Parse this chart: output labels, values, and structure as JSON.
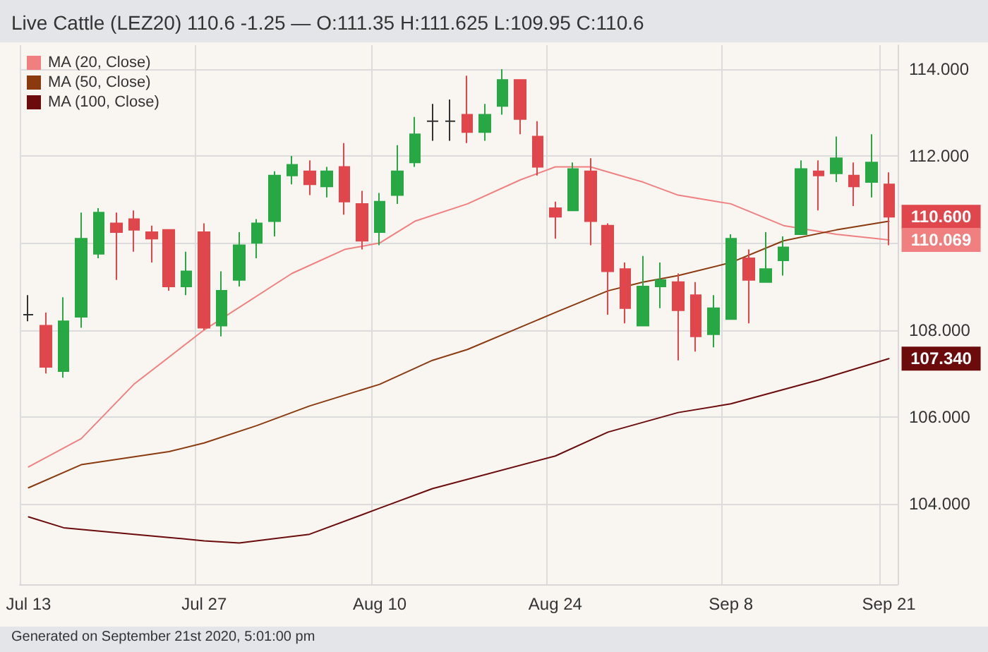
{
  "chart_data": {
    "type": "candlestick",
    "title": "Live Cattle (LEZ20) 110.6 -1.25 — O:111.35 H:111.625 L:109.95 C:110.6",
    "annotations": [
      "Generated on September 21st 2020, 5:01:00 pm"
    ],
    "categories": [
      "Jul 13",
      null,
      null,
      null,
      null,
      null,
      null,
      null,
      null,
      null,
      "Jul 27",
      null,
      null,
      null,
      null,
      null,
      null,
      null,
      null,
      null,
      "Aug 10",
      null,
      null,
      null,
      null,
      null,
      null,
      null,
      null,
      null,
      "Aug 24",
      null,
      null,
      null,
      null,
      null,
      null,
      null,
      null,
      null,
      "Sep 8",
      null,
      null,
      null,
      null,
      null,
      null,
      null,
      null,
      "Sep 21"
    ],
    "ohlc": [
      [
        108.35,
        108.8,
        108.2,
        108.35
      ],
      [
        108.1,
        108.4,
        107.0,
        107.15
      ],
      [
        107.05,
        108.75,
        106.9,
        108.2
      ],
      [
        108.3,
        110.7,
        108.05,
        110.1
      ],
      [
        109.75,
        110.8,
        109.65,
        110.7
      ],
      [
        110.45,
        110.7,
        109.15,
        110.25
      ],
      [
        110.55,
        110.75,
        109.8,
        110.3
      ],
      [
        110.25,
        110.4,
        109.55,
        110.1
      ],
      [
        110.3,
        110.3,
        108.9,
        109.0
      ],
      [
        109.0,
        109.8,
        108.8,
        109.35
      ],
      [
        110.25,
        110.45,
        108.0,
        108.05
      ],
      [
        108.1,
        109.35,
        107.85,
        108.9
      ],
      [
        109.15,
        110.25,
        109.0,
        109.95
      ],
      [
        110.0,
        110.55,
        109.65,
        110.45
      ],
      [
        110.5,
        111.65,
        110.15,
        111.55
      ],
      [
        111.55,
        112.0,
        111.35,
        111.8
      ],
      [
        111.65,
        111.9,
        111.1,
        111.35
      ],
      [
        111.3,
        111.75,
        111.05,
        111.65
      ],
      [
        111.75,
        112.3,
        110.65,
        110.95
      ],
      [
        110.9,
        111.2,
        109.85,
        110.05
      ],
      [
        110.25,
        111.15,
        109.95,
        110.95
      ],
      [
        111.1,
        112.25,
        110.9,
        111.65
      ],
      [
        111.85,
        112.9,
        111.75,
        112.5
      ],
      [
        112.8,
        113.2,
        112.35,
        112.8
      ],
      [
        112.8,
        113.3,
        112.35,
        112.8
      ],
      [
        112.95,
        113.85,
        112.3,
        112.55
      ],
      [
        112.55,
        113.2,
        112.35,
        112.95
      ],
      [
        113.15,
        114.0,
        112.95,
        113.75
      ],
      [
        113.75,
        113.75,
        112.5,
        112.85
      ],
      [
        112.45,
        112.8,
        111.55,
        111.75
      ],
      [
        110.8,
        110.95,
        110.1,
        110.6
      ],
      [
        110.75,
        111.85,
        110.75,
        111.7
      ],
      [
        111.65,
        111.95,
        109.95,
        110.5
      ],
      [
        110.4,
        110.45,
        108.35,
        109.35
      ],
      [
        109.4,
        109.55,
        108.15,
        108.5
      ],
      [
        108.1,
        109.7,
        108.1,
        109.0
      ],
      [
        109.0,
        109.55,
        108.5,
        109.15
      ],
      [
        109.1,
        109.3,
        107.3,
        108.45
      ],
      [
        108.8,
        109.1,
        107.5,
        107.85
      ],
      [
        107.9,
        108.8,
        107.6,
        108.5
      ],
      [
        108.25,
        110.2,
        108.25,
        110.1
      ],
      [
        109.65,
        109.85,
        108.15,
        109.15
      ],
      [
        109.1,
        110.25,
        109.1,
        109.4
      ],
      [
        109.6,
        110.15,
        109.25,
        109.9
      ],
      [
        110.2,
        111.9,
        110.2,
        111.7
      ],
      [
        111.65,
        111.9,
        110.75,
        111.55
      ],
      [
        111.6,
        112.45,
        111.4,
        111.95
      ],
      [
        111.55,
        111.85,
        110.85,
        111.3
      ],
      [
        111.4,
        112.5,
        111.05,
        111.85
      ],
      [
        111.35,
        111.625,
        109.95,
        110.6
      ]
    ],
    "colors": [
      "#333333",
      "#e0474c",
      "#28a745",
      "#28a745",
      "#28a745",
      "#e0474c",
      "#e0474c",
      "#e0474c",
      "#e0474c",
      "#28a745",
      "#e0474c",
      "#28a745",
      "#28a745",
      "#28a745",
      "#28a745",
      "#28a745",
      "#e0474c",
      "#28a745",
      "#e0474c",
      "#e0474c",
      "#28a745",
      "#28a745",
      "#28a745",
      "#333333",
      "#333333",
      "#e0474c",
      "#28a745",
      "#28a745",
      "#e0474c",
      "#e0474c",
      "#e0474c",
      "#28a745",
      "#e0474c",
      "#e0474c",
      "#e0474c",
      "#28a745",
      "#28a745",
      "#e0474c",
      "#e0474c",
      "#28a745",
      "#28a745",
      "#e0474c",
      "#28a745",
      "#28a745",
      "#28a745",
      "#e0474c",
      "#28a745",
      "#e0474c",
      "#28a745",
      "#e0474c"
    ],
    "value_labels": [
      null,
      null,
      null,
      null,
      null,
      null,
      null,
      null,
      null,
      null,
      null,
      null,
      null,
      null,
      null,
      null,
      null,
      null,
      null,
      null,
      null,
      null,
      null,
      null,
      null,
      null,
      null,
      null,
      null,
      null,
      null,
      null,
      null,
      null,
      null,
      null,
      null,
      null,
      null,
      null,
      null,
      null,
      null,
      null,
      null,
      null,
      null,
      null,
      null,
      "110.600"
    ],
    "series": [
      {
        "type": "line",
        "name": "MA (20, Close)",
        "color": "#f08080",
        "values": [
          104.85,
          null,
          null,
          105.5,
          null,
          null,
          106.75,
          null,
          null,
          null,
          108.0,
          null,
          null,
          null,
          null,
          109.3,
          null,
          null,
          109.85,
          null,
          110.0,
          null,
          110.5,
          null,
          null,
          110.9,
          null,
          null,
          111.45,
          null,
          111.75,
          null,
          111.75,
          null,
          null,
          111.4,
          null,
          111.1,
          null,
          null,
          110.9,
          null,
          null,
          110.4,
          null,
          null,
          110.2,
          null,
          null,
          110.069
        ],
        "value_labels": [
          null,
          null,
          null,
          null,
          null,
          null,
          null,
          null,
          null,
          null,
          null,
          null,
          null,
          null,
          null,
          null,
          null,
          null,
          null,
          null,
          null,
          null,
          null,
          null,
          null,
          null,
          null,
          null,
          null,
          null,
          null,
          null,
          null,
          null,
          null,
          null,
          null,
          null,
          null,
          null,
          null,
          null,
          null,
          null,
          null,
          null,
          null,
          null,
          null,
          "110.069"
        ]
      },
      {
        "type": "line",
        "name": "MA (50, Close)",
        "color": "#8b3a0f",
        "values": [
          104.37,
          null,
          null,
          104.9,
          null,
          null,
          null,
          null,
          105.2,
          null,
          105.4,
          null,
          null,
          105.8,
          null,
          null,
          106.25,
          null,
          null,
          null,
          106.75,
          null,
          null,
          107.3,
          null,
          107.55,
          null,
          null,
          null,
          null,
          108.4,
          null,
          null,
          108.9,
          null,
          109.1,
          null,
          109.25,
          null,
          null,
          109.55,
          null,
          null,
          110.05,
          null,
          null,
          110.3,
          null,
          null,
          110.5
        ]
      },
      {
        "type": "line",
        "name": "MA (100, Close)",
        "color": "#6b0b0b",
        "values": [
          103.7,
          null,
          103.45,
          null,
          null,
          null,
          103.3,
          null,
          null,
          null,
          103.15,
          null,
          103.1,
          null,
          null,
          null,
          103.3,
          null,
          null,
          null,
          103.9,
          null,
          null,
          104.35,
          null,
          null,
          null,
          null,
          null,
          null,
          105.1,
          null,
          null,
          105.65,
          null,
          null,
          null,
          106.1,
          null,
          null,
          106.3,
          null,
          null,
          null,
          null,
          106.85,
          null,
          null,
          null,
          107.34
        ],
        "value_labels": [
          null,
          null,
          null,
          null,
          null,
          null,
          null,
          null,
          null,
          null,
          null,
          null,
          null,
          null,
          null,
          null,
          null,
          null,
          null,
          null,
          null,
          null,
          null,
          null,
          null,
          null,
          null,
          null,
          null,
          null,
          null,
          null,
          null,
          null,
          null,
          null,
          null,
          null,
          null,
          null,
          null,
          null,
          null,
          null,
          null,
          null,
          null,
          null,
          null,
          "107.340"
        ]
      }
    ],
    "ylim": [
      102.15,
      114.55
    ],
    "yticks": [
      {
        "value": 104,
        "label": "104.000"
      },
      {
        "value": 106,
        "label": "106.000"
      },
      {
        "value": 108,
        "label": "108.000"
      },
      {
        "value": 110,
        "label": null
      },
      {
        "value": 112,
        "label": "112.000"
      },
      {
        "value": 114,
        "label": "114.000"
      }
    ],
    "grid": true,
    "legend": "top left"
  }
}
